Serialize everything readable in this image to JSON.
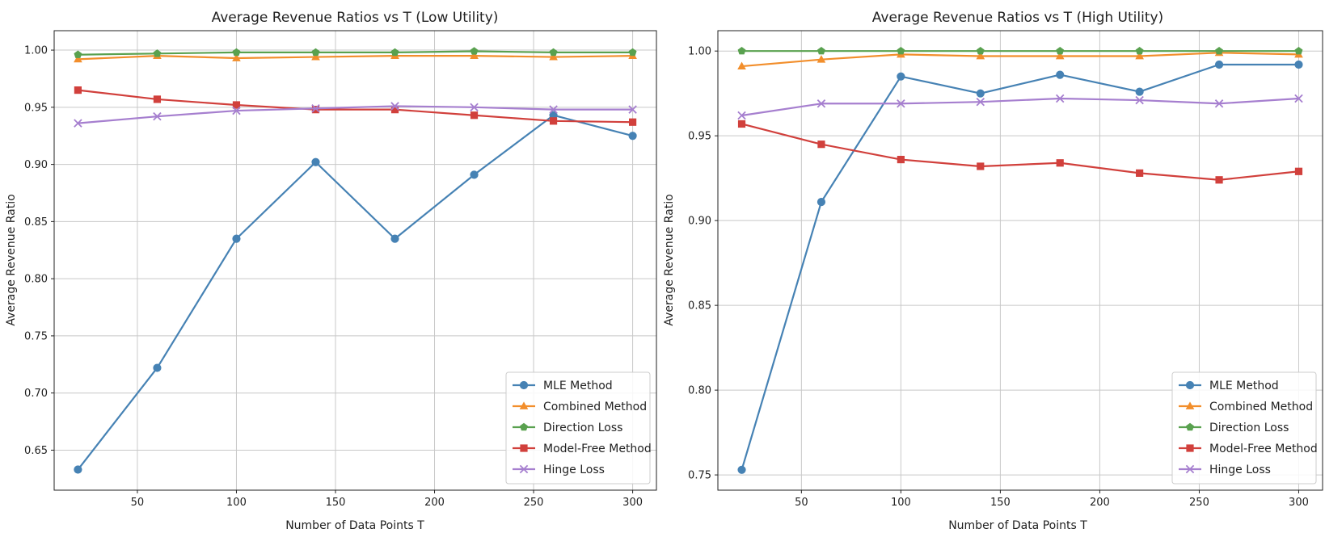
{
  "chart_data": [
    {
      "type": "line",
      "title": "Average Revenue Ratios vs T (Low Utility)",
      "xlabel": "Number of Data Points T",
      "ylabel": "Average Revenue Ratio",
      "xlim": [
        8,
        312
      ],
      "ylim": [
        0.615,
        1.017
      ],
      "xticks": [
        50,
        100,
        150,
        200,
        250,
        300
      ],
      "yticks": [
        0.65,
        0.7,
        0.75,
        0.8,
        0.85,
        0.9,
        0.95,
        1.0
      ],
      "ytick_labels": [
        "0.65",
        "0.70",
        "0.75",
        "0.80",
        "0.85",
        "0.90",
        "0.95",
        "1.00"
      ],
      "grid": true,
      "legend_position": "bottom-right",
      "x": [
        20,
        60,
        100,
        140,
        180,
        220,
        260,
        300
      ],
      "series": [
        {
          "name": "MLE Method",
          "color": "#4682b4",
          "marker": "circle",
          "values": [
            0.633,
            0.722,
            0.835,
            0.902,
            0.835,
            0.891,
            0.943,
            0.925
          ]
        },
        {
          "name": "Combined Method",
          "color": "#f28e2b",
          "marker": "triangle",
          "values": [
            0.992,
            0.995,
            0.993,
            0.994,
            0.995,
            0.995,
            0.994,
            0.995
          ]
        },
        {
          "name": "Direction Loss",
          "color": "#59a14f",
          "marker": "pentagon",
          "values": [
            0.996,
            0.997,
            0.998,
            0.998,
            0.998,
            0.999,
            0.998,
            0.998
          ]
        },
        {
          "name": "Model-Free Method",
          "color": "#d1403c",
          "marker": "square",
          "values": [
            0.965,
            0.957,
            0.952,
            0.948,
            0.948,
            0.943,
            0.938,
            0.937
          ]
        },
        {
          "name": "Hinge Loss",
          "color": "#a67fcf",
          "marker": "x",
          "values": [
            0.936,
            0.942,
            0.947,
            0.949,
            0.951,
            0.95,
            0.948,
            0.948
          ]
        }
      ]
    },
    {
      "type": "line",
      "title": "Average Revenue Ratios vs T (High Utility)",
      "xlabel": "Number of Data Points T",
      "ylabel": "Average Revenue Ratio",
      "xlim": [
        8,
        312
      ],
      "ylim": [
        0.741,
        1.012
      ],
      "xticks": [
        50,
        100,
        150,
        200,
        250,
        300
      ],
      "yticks": [
        0.75,
        0.8,
        0.85,
        0.9,
        0.95,
        1.0
      ],
      "ytick_labels": [
        "0.75",
        "0.80",
        "0.85",
        "0.90",
        "0.95",
        "1.00"
      ],
      "grid": true,
      "legend_position": "bottom-right",
      "x": [
        20,
        60,
        100,
        140,
        180,
        220,
        260,
        300
      ],
      "series": [
        {
          "name": "MLE Method",
          "color": "#4682b4",
          "marker": "circle",
          "values": [
            0.753,
            0.911,
            0.985,
            0.975,
            0.986,
            0.976,
            0.992,
            0.992
          ]
        },
        {
          "name": "Combined Method",
          "color": "#f28e2b",
          "marker": "triangle",
          "values": [
            0.991,
            0.995,
            0.998,
            0.997,
            0.997,
            0.997,
            0.999,
            0.998
          ]
        },
        {
          "name": "Direction Loss",
          "color": "#59a14f",
          "marker": "pentagon",
          "values": [
            1.0,
            1.0,
            1.0,
            1.0,
            1.0,
            1.0,
            1.0,
            1.0
          ]
        },
        {
          "name": "Model-Free Method",
          "color": "#d1403c",
          "marker": "square",
          "values": [
            0.957,
            0.945,
            0.936,
            0.932,
            0.934,
            0.928,
            0.924,
            0.929
          ]
        },
        {
          "name": "Hinge Loss",
          "color": "#a67fcf",
          "marker": "x",
          "values": [
            0.962,
            0.969,
            0.969,
            0.97,
            0.972,
            0.971,
            0.969,
            0.972
          ]
        }
      ]
    }
  ]
}
